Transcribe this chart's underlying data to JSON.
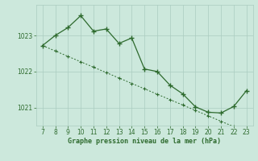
{
  "x": [
    7,
    8,
    9,
    10,
    11,
    12,
    13,
    14,
    15,
    16,
    17,
    18,
    19,
    20,
    21,
    22,
    23
  ],
  "y_main": [
    1022.72,
    1023.0,
    1023.22,
    1023.55,
    1023.12,
    1023.18,
    1022.78,
    1022.93,
    1022.07,
    1022.0,
    1021.62,
    1021.38,
    1021.02,
    1020.87,
    1020.85,
    1021.03,
    1021.47
  ],
  "y_trend": [
    1022.72,
    1022.57,
    1022.42,
    1022.27,
    1022.12,
    1021.97,
    1021.82,
    1021.67,
    1021.52,
    1021.37,
    1021.22,
    1021.07,
    1020.92,
    1020.77,
    1020.62,
    1020.47,
    1020.32
  ],
  "line_color": "#2d6a2d",
  "bg_color": "#cce8dc",
  "grid_color": "#aaccc0",
  "xlabel": "Graphe pression niveau de la mer (hPa)",
  "xlim": [
    6.5,
    23.5
  ],
  "ylim": [
    1020.5,
    1023.85
  ],
  "yticks": [
    1021,
    1022,
    1023
  ],
  "xticks": [
    7,
    8,
    9,
    10,
    11,
    12,
    13,
    14,
    15,
    16,
    17,
    18,
    19,
    20,
    21,
    22,
    23
  ]
}
